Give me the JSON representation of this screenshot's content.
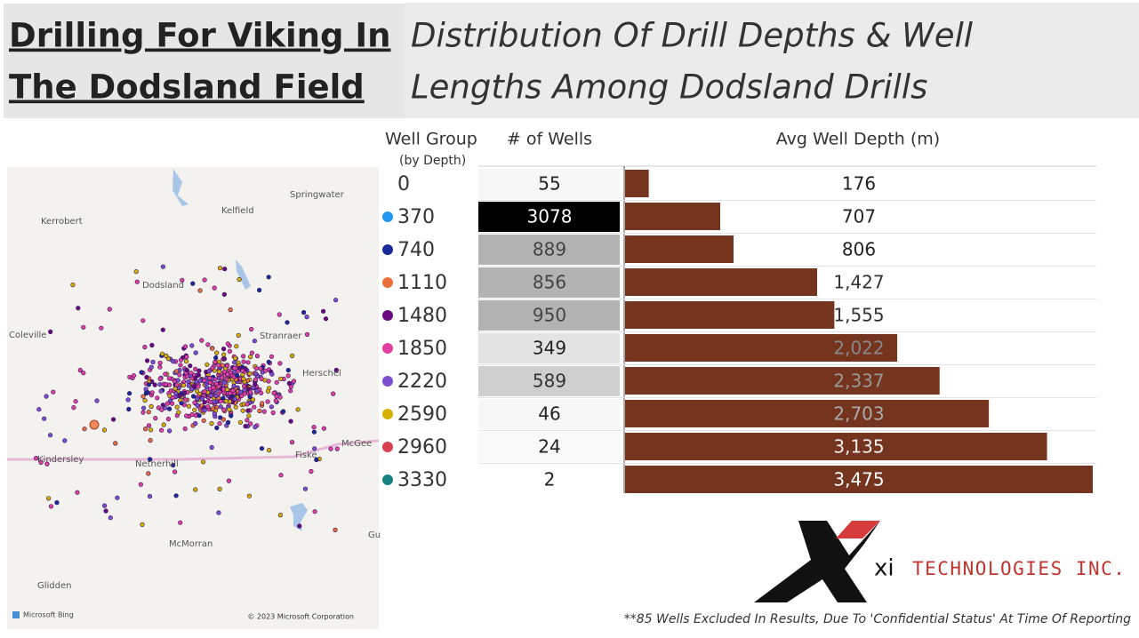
{
  "header": {
    "title_line1": "Drilling For Viking In ",
    "title_line2": "The Dodsland Field",
    "subtitle_line1": "Distribution Of Drill Depths & Well",
    "subtitle_line2": "Lengths Among Dodsland Drills"
  },
  "table": {
    "columns": [
      "Well Group",
      "# of Wells",
      "Avg Well Depth (m)"
    ],
    "group_note": "(by Depth)",
    "bar_color": "#74341e",
    "avg_range": [
      0,
      3475
    ],
    "rows": [
      {
        "group": "0",
        "dot": null,
        "wells": 55,
        "wells_fill": "#f7f7f7",
        "wells_text": "#222",
        "avg_depth": 176,
        "avg_label": "176",
        "label_color": "#222"
      },
      {
        "group": "370",
        "dot": "#2196f3",
        "wells": 3078,
        "wells_fill": "#000000",
        "wells_text": "#fff",
        "avg_depth": 707,
        "avg_label": "707",
        "label_color": "#222"
      },
      {
        "group": "740",
        "dot": "#1a2a9a",
        "wells": 889,
        "wells_fill": "#b3b3b3",
        "wells_text": "#444",
        "avg_depth": 806,
        "avg_label": "806",
        "label_color": "#222"
      },
      {
        "group": "1110",
        "dot": "#e8703a",
        "wells": 856,
        "wells_fill": "#b3b3b3",
        "wells_text": "#444",
        "avg_depth": 1427,
        "avg_label": "1,427",
        "label_color": "#333"
      },
      {
        "group": "1480",
        "dot": "#6a0a80",
        "wells": 950,
        "wells_fill": "#b3b3b3",
        "wells_text": "#444",
        "avg_depth": 1555,
        "avg_label": "1,555",
        "label_color": "#333"
      },
      {
        "group": "1850",
        "dot": "#e040a0",
        "wells": 349,
        "wells_fill": "#e3e3e3",
        "wells_text": "#222",
        "avg_depth": 2022,
        "avg_label": "2,022",
        "label_color": "#888"
      },
      {
        "group": "2220",
        "dot": "#7b4fd0",
        "wells": 589,
        "wells_fill": "#cfcfcf",
        "wells_text": "#333",
        "avg_depth": 2337,
        "avg_label": "2,337",
        "label_color": "#999"
      },
      {
        "group": "2590",
        "dot": "#d4b000",
        "wells": 46,
        "wells_fill": "#f7f7f7",
        "wells_text": "#222",
        "avg_depth": 2703,
        "avg_label": "2,703",
        "label_color": "#aaa"
      },
      {
        "group": "2960",
        "dot": "#d94050",
        "wells": 24,
        "wells_fill": "#f9f9f9",
        "wells_text": "#222",
        "avg_depth": 3135,
        "avg_label": "3,135",
        "label_color": "#eee"
      },
      {
        "group": "3330",
        "dot": "#1a8080",
        "wells": 2,
        "wells_fill": "#ffffff",
        "wells_text": "#222",
        "avg_depth": 3475,
        "avg_label": "3,475",
        "label_color": "#fff"
      }
    ]
  },
  "map": {
    "labels": [
      "Springwater",
      "Kerrobert",
      "Kelfield",
      "Dodsland",
      "Coleville",
      "Stranraer",
      "Herschel",
      "Kindersley",
      "Netherhill",
      "Fiske",
      "McGee",
      "McMorran",
      "Glidden",
      "Gu"
    ],
    "credit_left": "Microsoft Bing",
    "credit_right": "© 2023 Microsoft Corporation"
  },
  "logo": {
    "mark": "xi",
    "name": "TECHNOLOGIES INC."
  },
  "footnote": "**85 Wells Excluded In Results, Due To 'Confidential Status' At Time Of Reporting"
}
